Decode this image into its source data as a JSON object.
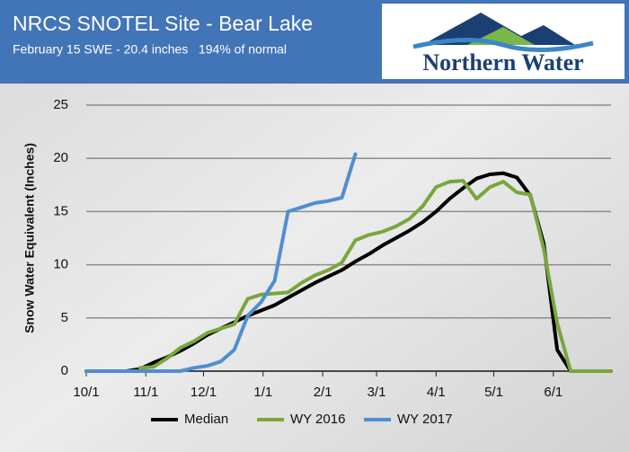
{
  "chart_data": {
    "type": "line",
    "title": "NRCS SNOTEL Site - Bear Lake",
    "subtitle": "February 15 SWE - 20.4 inches   194% of normal",
    "logo": "Northern Water",
    "ylabel": "Snow Water Equivalent (Inches)",
    "x": [
      0,
      7,
      14,
      21,
      28,
      35,
      42,
      49,
      56,
      63,
      70,
      77,
      84,
      91,
      98,
      105,
      112,
      119,
      126,
      133,
      140,
      147,
      154,
      161,
      168,
      175,
      182,
      189,
      196,
      203,
      210,
      217,
      224,
      231,
      238,
      245,
      252,
      259,
      266,
      273
    ],
    "xlim": [
      0,
      273
    ],
    "xticks": [
      {
        "value": 0,
        "label": "10/1"
      },
      {
        "value": 31,
        "label": "11/1"
      },
      {
        "value": 61,
        "label": "12/1"
      },
      {
        "value": 92,
        "label": "1/1"
      },
      {
        "value": 123,
        "label": "2/1"
      },
      {
        "value": 151,
        "label": "3/1"
      },
      {
        "value": 182,
        "label": "4/1"
      },
      {
        "value": 212,
        "label": "5/1"
      },
      {
        "value": 243,
        "label": "6/1"
      }
    ],
    "ylim": [
      0,
      25
    ],
    "yticks": [
      0,
      5,
      10,
      15,
      20,
      25
    ],
    "grid": true,
    "series": [
      {
        "name": "Median",
        "color": "#000000",
        "values": [
          0,
          0,
          0,
          0,
          0.2,
          0.8,
          1.3,
          1.9,
          2.6,
          3.4,
          4.0,
          4.6,
          5.2,
          5.7,
          6.2,
          6.9,
          7.6,
          8.3,
          8.9,
          9.5,
          10.3,
          11.0,
          11.8,
          12.5,
          13.2,
          14.0,
          15.0,
          16.2,
          17.2,
          18.1,
          18.5,
          18.6,
          18.2,
          16.5,
          12.0,
          2.0,
          0,
          0,
          0,
          0
        ]
      },
      {
        "name": "WY 2016",
        "color": "#7aa63c",
        "values": [
          null,
          null,
          null,
          null,
          0.3,
          0.4,
          1.2,
          2.2,
          2.8,
          3.6,
          4.0,
          4.4,
          6.8,
          7.2,
          7.3,
          7.4,
          8.3,
          9.0,
          9.5,
          10.2,
          12.3,
          12.8,
          13.1,
          13.6,
          14.3,
          15.5,
          17.3,
          17.8,
          17.9,
          16.2,
          17.3,
          17.8,
          16.8,
          16.6,
          11.5,
          4.5,
          0,
          0,
          0,
          0
        ]
      },
      {
        "name": "WY 2017",
        "color": "#4f8fd0",
        "values": [
          0,
          0,
          0,
          0,
          0,
          0,
          0,
          0,
          0.3,
          0.5,
          0.9,
          2.0,
          5.2,
          6.5,
          8.5,
          15.0,
          15.4,
          15.8,
          16.0,
          16.3,
          20.4,
          null,
          null,
          null,
          null,
          null,
          null,
          null,
          null,
          null,
          null,
          null,
          null,
          null,
          null,
          null,
          null,
          null,
          null,
          null
        ]
      }
    ],
    "legend": "bottom"
  }
}
